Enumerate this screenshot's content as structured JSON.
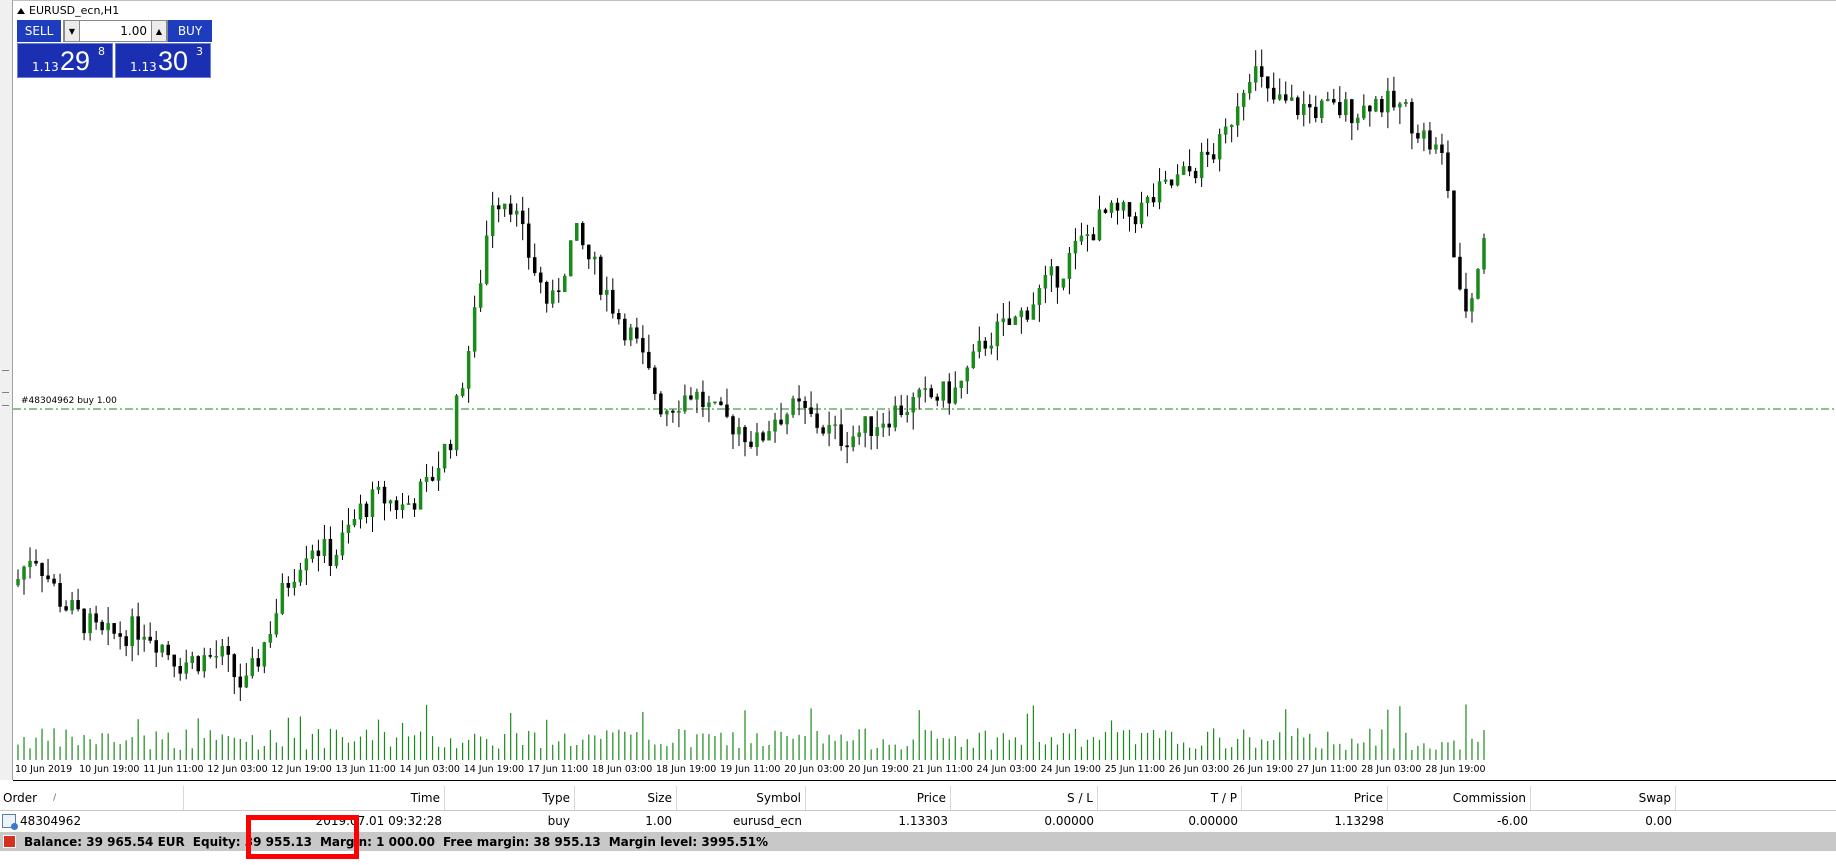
{
  "window": {
    "title": "EURUSD_ecn,H1"
  },
  "trade_panel": {
    "sell_label": "SELL",
    "buy_label": "BUY",
    "lot_value": "1.00",
    "sell_price_small": "1.13",
    "sell_price_big": "29",
    "sell_price_sup": "8",
    "buy_price_small": "1.13",
    "buy_price_big": "30",
    "buy_price_sup": "3"
  },
  "order_line_label": "#48304962 buy 1.00",
  "chart_data": {
    "type": "candlestick",
    "symbol": "EURUSD_ecn",
    "timeframe": "H1",
    "x_tick_labels": [
      "10 Jun 2019",
      "10 Jun 19:00",
      "11 Jun 11:00",
      "12 Jun 03:00",
      "12 Jun 19:00",
      "13 Jun 11:00",
      "14 Jun 03:00",
      "14 Jun 19:00",
      "17 Jun 11:00",
      "18 Jun 03:00",
      "18 Jun 19:00",
      "19 Jun 11:00",
      "20 Jun 03:00",
      "20 Jun 19:00",
      "21 Jun 11:00",
      "24 Jun 03:00",
      "24 Jun 19:00",
      "25 Jun 11:00",
      "26 Jun 03:00",
      "26 Jun 19:00",
      "27 Jun 11:00",
      "28 Jun 03:00",
      "28 Jun 19:00"
    ],
    "price_path": [
      [
        0,
        0.5
      ],
      [
        0.3,
        0.6
      ],
      [
        0.8,
        0.45
      ],
      [
        1.5,
        0.35
      ],
      [
        2.2,
        0.38
      ],
      [
        2.8,
        0.28
      ],
      [
        3.5,
        0.3
      ],
      [
        3.9,
        0.2
      ],
      [
        4.2,
        0.32
      ],
      [
        4.6,
        0.5
      ],
      [
        5.0,
        0.62
      ],
      [
        5.4,
        0.58
      ],
      [
        5.9,
        0.72
      ],
      [
        6.2,
        0.75
      ],
      [
        6.6,
        0.72
      ],
      [
        7.0,
        0.78
      ],
      [
        7.4,
        0.92
      ],
      [
        7.8,
        1.25
      ],
      [
        8.1,
        1.6
      ],
      [
        8.4,
        1.6
      ],
      [
        8.7,
        1.45
      ],
      [
        9.1,
        1.28
      ],
      [
        9.5,
        1.5
      ],
      [
        9.9,
        1.38
      ],
      [
        10.3,
        1.25
      ],
      [
        10.5,
        1.2
      ],
      [
        11.0,
        1.0
      ],
      [
        11.5,
        1.05
      ],
      [
        11.9,
        0.98
      ],
      [
        12.3,
        0.95
      ],
      [
        12.6,
        0.9
      ],
      [
        12.9,
        0.98
      ],
      [
        13.3,
        1.0
      ],
      [
        13.7,
        0.95
      ],
      [
        14.0,
        0.92
      ],
      [
        14.3,
        0.93
      ],
      [
        14.6,
        0.96
      ],
      [
        15.0,
        1.0
      ],
      [
        15.5,
        1.03
      ],
      [
        16.0,
        1.05
      ],
      [
        16.5,
        1.2
      ],
      [
        17.0,
        1.25
      ],
      [
        17.4,
        1.33
      ],
      [
        17.8,
        1.4
      ],
      [
        18.0,
        1.45
      ],
      [
        18.5,
        1.55
      ],
      [
        19.0,
        1.55
      ],
      [
        19.5,
        1.62
      ],
      [
        20.0,
        1.68
      ],
      [
        20.5,
        1.75
      ],
      [
        20.8,
        1.9
      ],
      [
        21.0,
        1.98
      ],
      [
        21.3,
        1.88
      ],
      [
        21.7,
        1.86
      ],
      [
        22.2,
        1.85
      ],
      [
        22.6,
        1.85
      ],
      [
        22.9,
        1.85
      ],
      [
        23.0,
        1.88
      ],
      [
        23.6,
        1.85
      ],
      [
        23.9,
        1.78
      ],
      [
        24.3,
        1.7
      ],
      [
        24.5,
        1.32
      ],
      [
        24.7,
        1.28
      ],
      [
        25.0,
        1.55
      ]
    ],
    "order_line_y": 1.0,
    "grid": false
  },
  "terminal": {
    "columns": {
      "order": "Order",
      "sort": "/",
      "time": "Time",
      "type": "Type",
      "size": "Size",
      "symbol": "Symbol",
      "price": "Price",
      "sl": "S / L",
      "tp": "T / P",
      "price2": "Price",
      "commission": "Commission",
      "swap": "Swap"
    },
    "row": {
      "order": "48304962",
      "time": "2019.07.01 09:32:28",
      "type": "buy",
      "size": "1.00",
      "symbol": "eurusd_ecn",
      "price": "1.13303",
      "sl": "0.00000",
      "tp": "0.00000",
      "price2": "1.13298",
      "commission": "-6.00",
      "swap": "0.00"
    },
    "status": {
      "balance": "Balance: 39 965.54 EUR",
      "equity": "Equity: 39 955.13",
      "margin": "Margin: 1 000.00",
      "free_margin": "Free margin: 38 955.13",
      "margin_level": "Margin level: 3995.51%"
    }
  },
  "colors": {
    "bull": "#1a8a1a",
    "bear": "#000000",
    "volume": "#1a8a1a",
    "order_line": "#1a8a1a",
    "panel_blue": "#1e3dbe",
    "highlight": "#ff0000"
  }
}
